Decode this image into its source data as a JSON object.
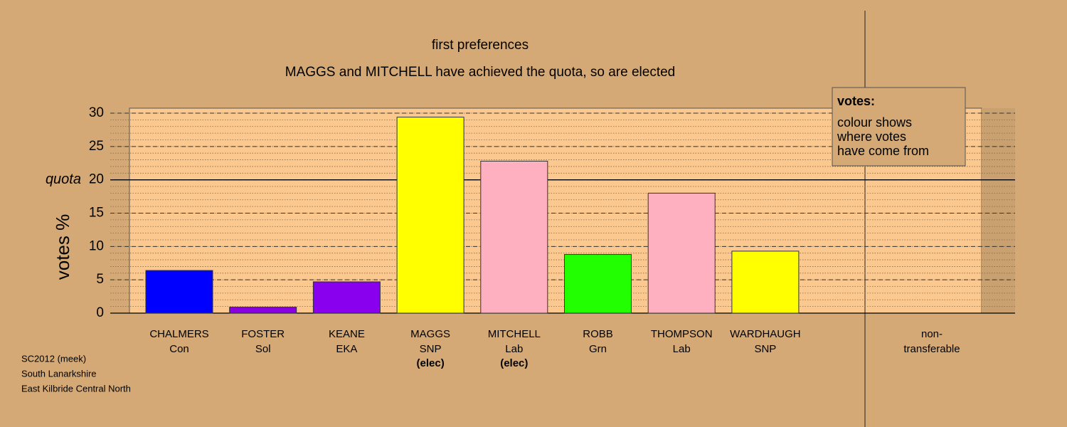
{
  "chart_data": {
    "type": "bar",
    "title": "first preferences",
    "subtitle": "MAGGS and MITCHELL have achieved the quota, so are elected",
    "y_label": "votes %",
    "categories": [
      "CHALMERS",
      "FOSTER",
      "KEANE",
      "MAGGS",
      "MITCHELL",
      "ROBB",
      "THOMPSON",
      "WARDHAUGH",
      "non-"
    ],
    "parties": [
      "Con",
      "Sol",
      "EKA",
      "SNP",
      "Lab",
      "Grn",
      "Lab",
      "SNP",
      "transferable"
    ],
    "status": [
      null,
      null,
      null,
      "(elec)",
      "(elec)",
      null,
      null,
      null,
      null
    ],
    "values": [
      6.4,
      0.9,
      4.7,
      29.4,
      22.8,
      8.8,
      18.0,
      9.3,
      0
    ],
    "colors": [
      "#0000ff",
      "#8800dd",
      "#8800ee",
      "#ffff00",
      "#ffb0c0",
      "#22ff00",
      "#ffb0c0",
      "#ffff00",
      "#000000"
    ],
    "ylim": [
      0,
      30
    ],
    "yticks": [
      0,
      5,
      10,
      15,
      20,
      25,
      30
    ],
    "minor_grid": 1,
    "quota": {
      "value": 20,
      "label": "quota"
    },
    "legend": {
      "title": "votes:",
      "lines": [
        "colour shows",
        "where votes",
        "have come from"
      ]
    },
    "footer": [
      "SC2012 (meek)",
      "South Lanarkshire",
      "East Kilbride Central North"
    ]
  }
}
